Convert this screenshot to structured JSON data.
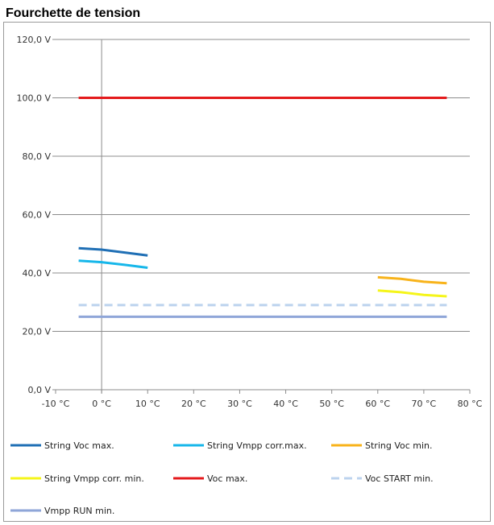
{
  "chart_data": {
    "type": "line",
    "title": "Fourchette de tension",
    "xlabel": "",
    "ylabel": "",
    "xlim": [
      -10,
      80
    ],
    "ylim": [
      0,
      120
    ],
    "x_ticks": [
      -10,
      0,
      10,
      20,
      30,
      40,
      50,
      60,
      70,
      80
    ],
    "x_tick_labels": [
      "-10 °C",
      "0 °C",
      "10 °C",
      "20 °C",
      "30 °C",
      "40 °C",
      "50 °C",
      "60 °C",
      "70 °C",
      "80 °C"
    ],
    "y_ticks": [
      0,
      20,
      40,
      60,
      80,
      100,
      120
    ],
    "y_tick_labels": [
      "0,0 V",
      "20,0 V",
      "40,0 V",
      "60,0 V",
      "80,0 V",
      "100,0 V",
      "120,0 V"
    ],
    "grid": true,
    "legend_position": "bottom",
    "series": [
      {
        "name": "String Voc max.",
        "color": "#1f6fb5",
        "dash": false,
        "x": [
          -5,
          0,
          5,
          10
        ],
        "y": [
          48.5,
          48.0,
          47.0,
          46.0
        ]
      },
      {
        "name": "String Vmpp corr.max.",
        "color": "#17b7ea",
        "dash": false,
        "x": [
          -5,
          0,
          5,
          10
        ],
        "y": [
          44.2,
          43.7,
          42.8,
          41.8
        ]
      },
      {
        "name": "String Voc min.",
        "color": "#f8b31a",
        "dash": false,
        "x": [
          60,
          65,
          70,
          75
        ],
        "y": [
          38.5,
          38.0,
          37.0,
          36.5
        ]
      },
      {
        "name": "String Vmpp corr. min.",
        "color": "#f5f51a",
        "dash": false,
        "x": [
          60,
          65,
          70,
          75
        ],
        "y": [
          34.0,
          33.4,
          32.5,
          32.0
        ]
      },
      {
        "name": "Voc max.",
        "color": "#e41a1c",
        "dash": false,
        "x": [
          -5,
          75
        ],
        "y": [
          100.0,
          100.0
        ]
      },
      {
        "name": "Voc START min.",
        "color": "#bcd3ee",
        "dash": true,
        "x": [
          -5,
          75
        ],
        "y": [
          29.0,
          29.0
        ]
      },
      {
        "name": "Vmpp RUN min.",
        "color": "#8fa6d8",
        "dash": false,
        "x": [
          -5,
          75
        ],
        "y": [
          25.0,
          25.0
        ]
      }
    ]
  }
}
